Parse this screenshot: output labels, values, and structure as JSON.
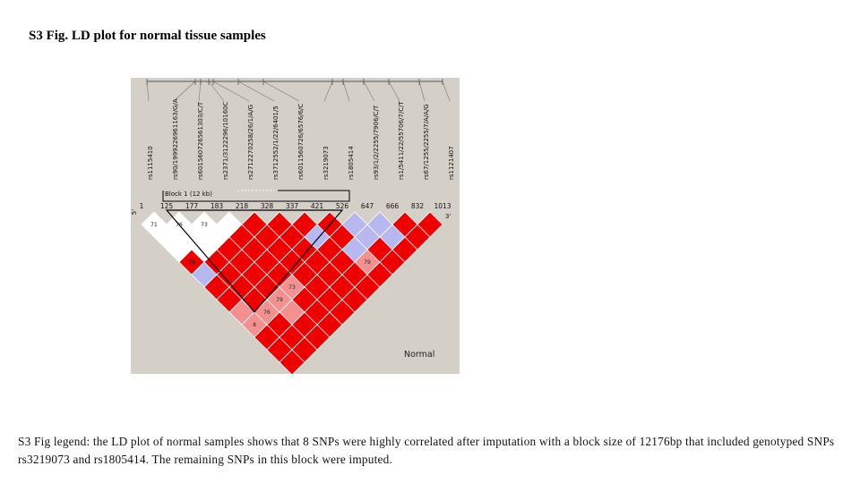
{
  "figure_title": "S3 Fig. LD plot for normal tissue samples",
  "legend_text": "S3 Fig legend: the LD plot of normal samples shows that 8 SNPs were highly correlated after imputation with a block size of 12176bp that included genotyped SNPs rs3219073 and rs1805414. The remaining SNPs in this block were imputed.",
  "ld_plot": {
    "panel_label": "Normal",
    "block_label": "Block 1 (12 kb)",
    "end_labels": [
      "5'",
      "3'"
    ],
    "snps": [
      {
        "name": "rs1115410",
        "pos": "1"
      },
      {
        "name": "rs90/1999226961163/G/A",
        "pos": "125"
      },
      {
        "name": "rs601560726561303/C/T",
        "pos": "177"
      },
      {
        "name": "rs2371/3122296/10160C",
        "pos": "183"
      },
      {
        "name": "rs2712270258/26/1/A/G",
        "pos": "218"
      },
      {
        "name": "rs3712552/1/22/6401/5",
        "pos": "328"
      },
      {
        "name": "rs6011560726/6576/6/C",
        "pos": "337"
      },
      {
        "name": "rs3219073",
        "pos": "421"
      },
      {
        "name": "rs1805414",
        "pos": "526"
      },
      {
        "name": "rs93/1/2/2255/7906/C/T",
        "pos": "647"
      },
      {
        "name": "rs1/5411/22/55706/7/C/T",
        "pos": "666"
      },
      {
        "name": "rs67/1255/2255/7/A/A/G",
        "pos": "832"
      },
      {
        "name": "rs1121407",
        "pos": "1013"
      }
    ],
    "colors": {
      "strong_ld": "#ee0000",
      "strong_ld_edge": "#ff5050",
      "intermediate": "#f59090",
      "high_partial": "#f06060",
      "blue": "#b8b8f0",
      "white": "#ffffff",
      "block_outline": "#000000",
      "panel_bg": "#d4d0c8"
    },
    "cell_values": {
      "0-1": "71",
      "1-2": "76",
      "2-3": "73",
      "3-4": "",
      "0-4": "78",
      "7-11": "79",
      "3-9": "73",
      "2-9": "79",
      "1-9": "76",
      "0-9": "8"
    },
    "blue_cells": [
      "8-10",
      "8-9",
      "7-10",
      "9-10",
      "9-11",
      "0-5",
      "6-8"
    ],
    "white_cells": [
      "0-1",
      "1-2",
      "2-3",
      "3-4",
      "0-2",
      "1-3",
      "2-4",
      "0-3",
      "1-4"
    ],
    "light_red_cells": [
      "7-11",
      "3-9",
      "2-9",
      "1-9",
      "0-9",
      "0-8",
      "2-10"
    ]
  }
}
